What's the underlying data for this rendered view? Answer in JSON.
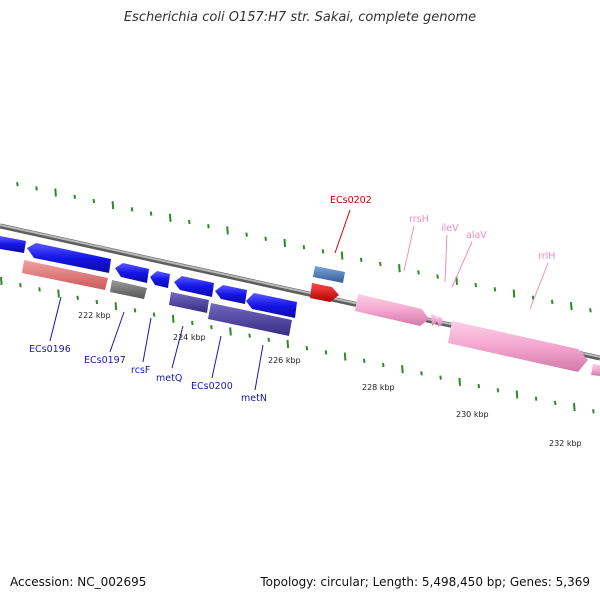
{
  "header": {
    "title": "Escherichia coli O157:H7 str. Sakai, complete genome"
  },
  "footer": {
    "accession": "Accession: NC_002695",
    "stats": "Topology: circular; Length: 5,498,450 bp; Genes: 5,369"
  },
  "colors": {
    "backbone": "#8a8a8a",
    "tick": "#2a8a2a",
    "cds_forward": "#1515e8",
    "cds_reverse": "#1515e8",
    "rrna": "#f4a6cf",
    "trna": "#f4a6cf",
    "highlight_gene": "#cc0000",
    "pseudo_gene": "#6f6f6f",
    "salmon_gene": "#e47c7c",
    "purple_gene": "#4b3d9a",
    "steel_gene": "#4a78b5",
    "label_blue": "#1a1aaa",
    "label_red": "#cc0000",
    "label_pink": "#f08fbe"
  },
  "scale_labels": [
    {
      "id": "222",
      "text": "222 kbp"
    },
    {
      "id": "224",
      "text": "224 kbp"
    },
    {
      "id": "226",
      "text": "226 kbp"
    },
    {
      "id": "228",
      "text": "228 kbp"
    },
    {
      "id": "230",
      "text": "230 kbp"
    },
    {
      "id": "232",
      "text": "232 kbp"
    }
  ],
  "gene_labels": [
    {
      "id": "ecs0196",
      "text": "ECs0196",
      "kind": "blue"
    },
    {
      "id": "ecs0197",
      "text": "ECs0197",
      "kind": "blue"
    },
    {
      "id": "rcsf",
      "text": "rcsF",
      "kind": "blue"
    },
    {
      "id": "metq",
      "text": "metQ",
      "kind": "blue"
    },
    {
      "id": "ecs0200",
      "text": "ECs0200",
      "kind": "blue"
    },
    {
      "id": "metn",
      "text": "metN",
      "kind": "blue"
    },
    {
      "id": "ecs0202",
      "text": "ECs0202",
      "kind": "red"
    },
    {
      "id": "rrsh",
      "text": "rrsH",
      "kind": "pink"
    },
    {
      "id": "ilev",
      "text": "ileV",
      "kind": "pink"
    },
    {
      "id": "alav",
      "text": "alaV",
      "kind": "pink"
    },
    {
      "id": "rrlh",
      "text": "rrlH",
      "kind": "pink"
    }
  ]
}
